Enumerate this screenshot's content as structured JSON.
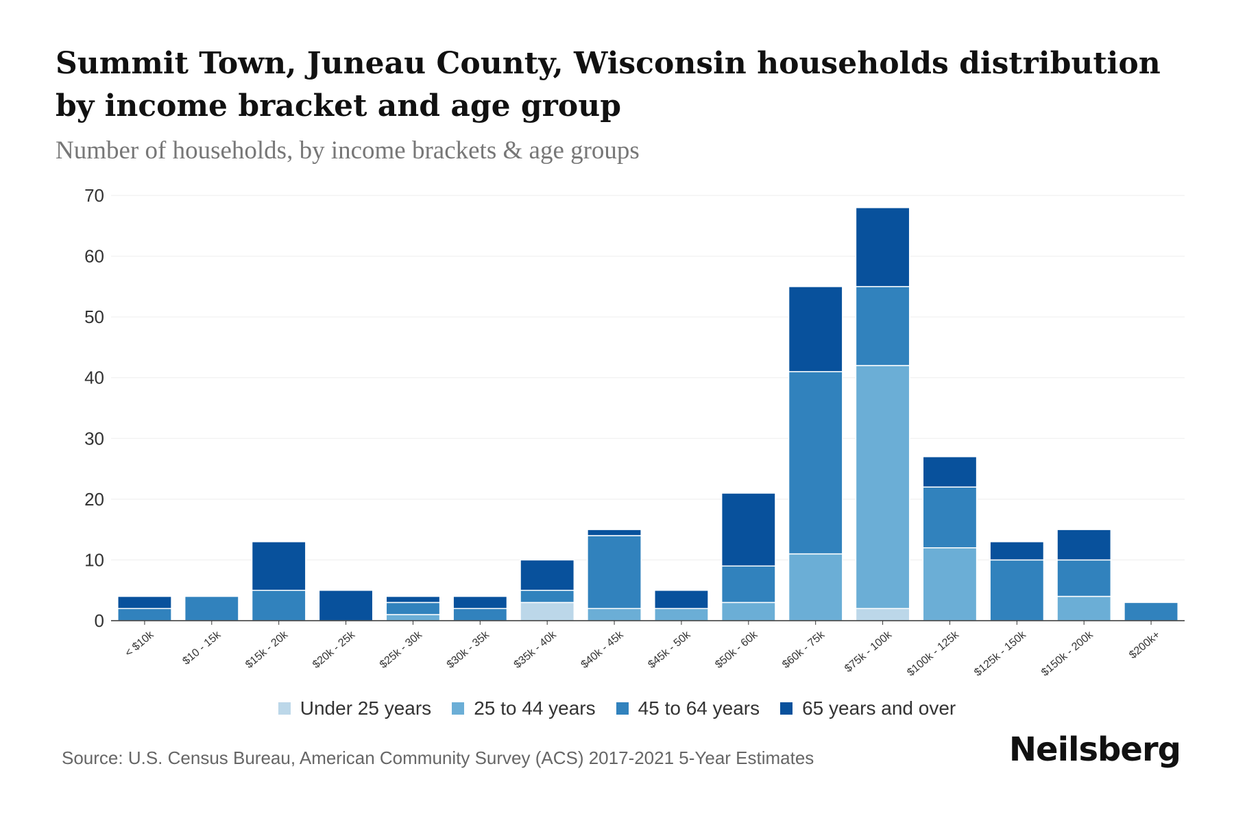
{
  "chart_data": {
    "type": "bar",
    "stacked": true,
    "title": "Summit Town, Juneau County, Wisconsin households distribution by income bracket and age group",
    "subtitle": "Number of households, by income brackets & age groups",
    "xlabel": "",
    "ylabel": "",
    "ylim": [
      0,
      70
    ],
    "yticks": [
      0,
      10,
      20,
      30,
      40,
      50,
      60,
      70
    ],
    "grid": true,
    "legend_position": "bottom",
    "categories": [
      "< $10k",
      "$10 - 15k",
      "$15k - 20k",
      "$20k - 25k",
      "$25k - 30k",
      "$30k - 35k",
      "$35k - 40k",
      "$40k - 45k",
      "$45k - 50k",
      "$50k - 60k",
      "$60k - 75k",
      "$75k - 100k",
      "$100k - 125k",
      "$125k - 150k",
      "$150k - 200k",
      "$200k+"
    ],
    "series": [
      {
        "name": "Under 25 years",
        "color": "#bcd7e9",
        "values": [
          0,
          0,
          0,
          0,
          0,
          0,
          3,
          0,
          0,
          0,
          0,
          2,
          0,
          0,
          0,
          0
        ]
      },
      {
        "name": "25 to 44 years",
        "color": "#6baed6",
        "values": [
          0,
          0,
          0,
          0,
          1,
          0,
          0,
          2,
          2,
          3,
          11,
          40,
          12,
          0,
          4,
          0
        ]
      },
      {
        "name": "45 to 64 years",
        "color": "#3182bd",
        "values": [
          2,
          4,
          5,
          0,
          2,
          2,
          2,
          12,
          0,
          6,
          30,
          13,
          10,
          10,
          6,
          3
        ]
      },
      {
        "name": "65 years and over",
        "color": "#08519c",
        "values": [
          2,
          0,
          8,
          5,
          1,
          2,
          5,
          1,
          3,
          12,
          14,
          13,
          5,
          3,
          5,
          0
        ]
      }
    ]
  },
  "source": "Source: U.S. Census Bureau, American Community Survey (ACS) 2017-2021 5-Year Estimates",
  "brand": "Neilsberg"
}
